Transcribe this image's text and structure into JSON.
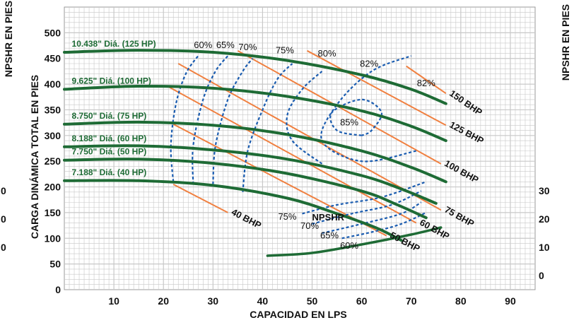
{
  "chart_data": {
    "type": "line",
    "title": "",
    "xlabel": "CAPACIDAD EN LPS",
    "ylabel": "CARGA DINÁMICA TOTAL EN PIES",
    "ylabel_right": "NPSHR EN PIES",
    "xlim": [
      0,
      95
    ],
    "ylim": [
      0,
      550
    ],
    "ylim_right": [
      -5,
      30
    ],
    "x_ticks": [
      10,
      20,
      30,
      40,
      50,
      60,
      70,
      80,
      90
    ],
    "y_ticks": [
      0,
      50,
      100,
      150,
      200,
      250,
      300,
      350,
      400,
      450,
      500
    ],
    "y_right_ticks": [
      0,
      10,
      20,
      30
    ],
    "y_left_partial_labels": [
      "0",
      "0",
      "0"
    ],
    "grid": true,
    "colors": {
      "head": "#1e6b35",
      "bhp": "#f08040",
      "efficiency": "#1a5cb0",
      "grid": "#c8c8c8"
    },
    "head_curves": [
      {
        "label": "10.438\" Diá. (125 HP)",
        "points": [
          [
            0,
            462
          ],
          [
            15,
            466
          ],
          [
            30,
            462
          ],
          [
            45,
            446
          ],
          [
            60,
            418
          ],
          [
            70,
            390
          ],
          [
            77,
            362
          ]
        ]
      },
      {
        "label": "9.625\" Diá. (100 HP)",
        "points": [
          [
            0,
            390
          ],
          [
            15,
            396
          ],
          [
            30,
            392
          ],
          [
            45,
            376
          ],
          [
            60,
            348
          ],
          [
            70,
            318
          ],
          [
            77,
            290
          ]
        ]
      },
      {
        "label": "8.750\" Diá. (75 HP)",
        "points": [
          [
            0,
            322
          ],
          [
            15,
            326
          ],
          [
            30,
            320
          ],
          [
            45,
            302
          ],
          [
            60,
            270
          ],
          [
            70,
            238
          ],
          [
            77,
            210
          ]
        ]
      },
      {
        "label": "8.188\" Diá. (60 HP)",
        "points": [
          [
            0,
            278
          ],
          [
            15,
            280
          ],
          [
            30,
            272
          ],
          [
            45,
            254
          ],
          [
            60,
            222
          ],
          [
            68,
            196
          ],
          [
            75,
            168
          ]
        ]
      },
      {
        "label": "7.750\" Diá. (50 HP)",
        "points": [
          [
            0,
            252
          ],
          [
            15,
            254
          ],
          [
            30,
            246
          ],
          [
            45,
            226
          ],
          [
            60,
            192
          ],
          [
            67,
            166
          ],
          [
            73,
            140
          ]
        ]
      },
      {
        "label": "7.188\" Diá. (40 HP)",
        "points": [
          [
            0,
            212
          ],
          [
            15,
            212
          ],
          [
            30,
            203
          ],
          [
            45,
            178
          ],
          [
            55,
            148
          ],
          [
            63,
            120
          ],
          [
            68,
            96
          ]
        ]
      }
    ],
    "npshr_curve": {
      "label": "NPSHR",
      "points": [
        [
          41,
          7
        ],
        [
          50,
          8
        ],
        [
          60,
          11
        ],
        [
          70,
          14.5
        ],
        [
          76,
          17
        ]
      ]
    },
    "bhp_lines": [
      {
        "label": "150 BHP",
        "x1": 69,
        "y1": 435,
        "x2": 77,
        "y2": 382
      },
      {
        "label": "125 BHP",
        "x1": 49,
        "y1": 465,
        "x2": 77,
        "y2": 320
      },
      {
        "label": "100 BHP",
        "x1": 35,
        "y1": 465,
        "x2": 76,
        "y2": 245
      },
      {
        "label": "75 BHP",
        "x1": 23,
        "y1": 440,
        "x2": 76,
        "y2": 155
      },
      {
        "label": "60 BHP",
        "x1": 21,
        "y1": 395,
        "x2": 71,
        "y2": 130
      },
      {
        "label": "50 BHP",
        "x1": 22,
        "y1": 322,
        "x2": 65,
        "y2": 105
      },
      {
        "label": "40 BHP",
        "x1": 22,
        "y1": 205,
        "x2": 33,
        "y2": 150
      }
    ],
    "efficiency_curves": [
      {
        "label": "60%",
        "points": [
          [
            22,
            210
          ],
          [
            21.5,
            280
          ],
          [
            22.5,
            360
          ],
          [
            24.5,
            420
          ],
          [
            27,
            455
          ]
        ]
      },
      {
        "label": "65%",
        "points": [
          [
            26,
            205
          ],
          [
            26,
            280
          ],
          [
            28,
            370
          ],
          [
            30.5,
            425
          ],
          [
            33,
            455
          ]
        ]
      },
      {
        "label": "70%",
        "points": [
          [
            30,
            205
          ],
          [
            30.5,
            280
          ],
          [
            33,
            370
          ],
          [
            36,
            425
          ],
          [
            38,
            450
          ]
        ]
      },
      {
        "label": "75%",
        "points": [
          [
            36,
            190
          ],
          [
            37,
            270
          ],
          [
            40,
            350
          ],
          [
            43,
            410
          ],
          [
            46,
            440
          ]
        ]
      },
      {
        "label": "80%",
        "points": [
          [
            52,
            245
          ],
          [
            46,
            290
          ],
          [
            45,
            340
          ],
          [
            48,
            390
          ],
          [
            52,
            425
          ]
        ]
      },
      {
        "label": "82%",
        "points": [
          [
            71,
            270
          ],
          [
            60,
            250
          ],
          [
            52,
            290
          ],
          [
            55,
            360
          ],
          [
            62,
            425
          ],
          [
            70,
            455
          ]
        ]
      },
      {
        "label": "85%",
        "points": [
          [
            60,
            300
          ],
          [
            55,
            310
          ],
          [
            54,
            345
          ],
          [
            60,
            370
          ],
          [
            64,
            345
          ],
          [
            62,
            310
          ],
          [
            60,
            300
          ]
        ]
      },
      {
        "label": "75%",
        "points": [
          [
            48,
            148
          ],
          [
            55,
            165
          ],
          [
            64,
            180
          ],
          [
            73,
            210
          ]
        ]
      },
      {
        "label": "70%",
        "points": [
          [
            50,
            128
          ],
          [
            58,
            148
          ],
          [
            66,
            165
          ],
          [
            72,
            192
          ]
        ]
      },
      {
        "label": "65%",
        "points": [
          [
            52,
            110
          ],
          [
            60,
            128
          ],
          [
            68,
            148
          ],
          [
            72,
            170
          ]
        ]
      },
      {
        "label": "60%",
        "points": [
          [
            56,
            100
          ],
          [
            62,
            112
          ],
          [
            68,
            128
          ],
          [
            73,
            150
          ]
        ]
      }
    ],
    "annotations": [
      {
        "text": "60%",
        "x": 28,
        "y": 470
      },
      {
        "text": "65%",
        "x": 32.5,
        "y": 470
      },
      {
        "text": "70%",
        "x": 37,
        "y": 466
      },
      {
        "text": "75%",
        "x": 44.5,
        "y": 460
      },
      {
        "text": "80%",
        "x": 53,
        "y": 454
      },
      {
        "text": "82%",
        "x": 61.5,
        "y": 434
      },
      {
        "text": "82%",
        "x": 73,
        "y": 396
      },
      {
        "text": "85%",
        "x": 57.5,
        "y": 320
      },
      {
        "text": "75%",
        "x": 45,
        "y": 136
      },
      {
        "text": "70%",
        "x": 49.5,
        "y": 118
      },
      {
        "text": "65%",
        "x": 53.5,
        "y": 100
      },
      {
        "text": "60%",
        "x": 57.5,
        "y": 80
      }
    ]
  }
}
